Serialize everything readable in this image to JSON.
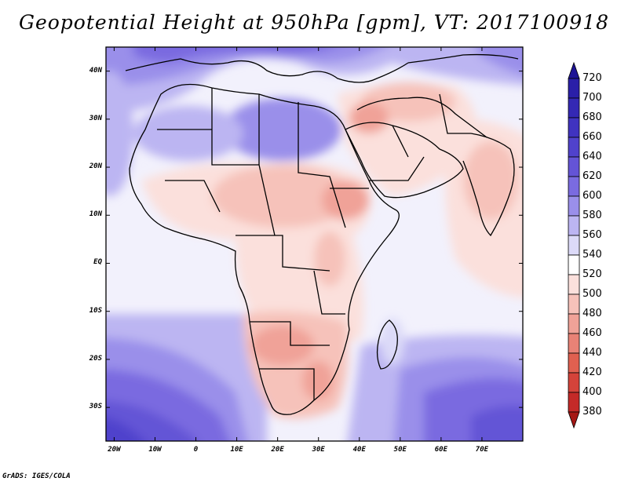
{
  "title": "Geopotential Height at 950hPa [gpm], VT: 2017100918",
  "credit": "GrADS: IGES/COLA",
  "map": {
    "region": "Africa, Middle East and western Indian Ocean",
    "lat_range": [
      -37,
      45
    ],
    "lon_range": [
      -22,
      80
    ],
    "lat_ticks": [
      {
        "value": 40,
        "label": "40N"
      },
      {
        "value": 30,
        "label": "30N"
      },
      {
        "value": 20,
        "label": "20N"
      },
      {
        "value": 10,
        "label": "10N"
      },
      {
        "value": 0,
        "label": "EQ"
      },
      {
        "value": -10,
        "label": "10S"
      },
      {
        "value": -20,
        "label": "20S"
      },
      {
        "value": -30,
        "label": "30S"
      }
    ],
    "lon_ticks": [
      {
        "value": -20,
        "label": "20W"
      },
      {
        "value": -10,
        "label": "10W"
      },
      {
        "value": 0,
        "label": "0"
      },
      {
        "value": 10,
        "label": "10E"
      },
      {
        "value": 20,
        "label": "20E"
      },
      {
        "value": 30,
        "label": "30E"
      },
      {
        "value": 40,
        "label": "40E"
      },
      {
        "value": 50,
        "label": "50E"
      },
      {
        "value": 60,
        "label": "60E"
      },
      {
        "value": 70,
        "label": "70E"
      }
    ]
  },
  "colorbar": {
    "labels": [
      "720",
      "700",
      "680",
      "660",
      "640",
      "620",
      "600",
      "580",
      "560",
      "540",
      "520",
      "500",
      "480",
      "460",
      "440",
      "420",
      "400",
      "380"
    ],
    "colors": [
      "#1e1496",
      "#2a1fa8",
      "#3428b4",
      "#4033c0",
      "#5042cc",
      "#6454d6",
      "#7a6be0",
      "#9a8fea",
      "#bcb5f2",
      "#dcdaf8",
      "#ffffff",
      "#fbe0dc",
      "#f6c2ba",
      "#f0a298",
      "#e98276",
      "#e06050",
      "#d4433a",
      "#c42a28",
      "#a51815"
    ]
  },
  "colors": {
    "background": "#ffffff",
    "frame": "#000000"
  }
}
